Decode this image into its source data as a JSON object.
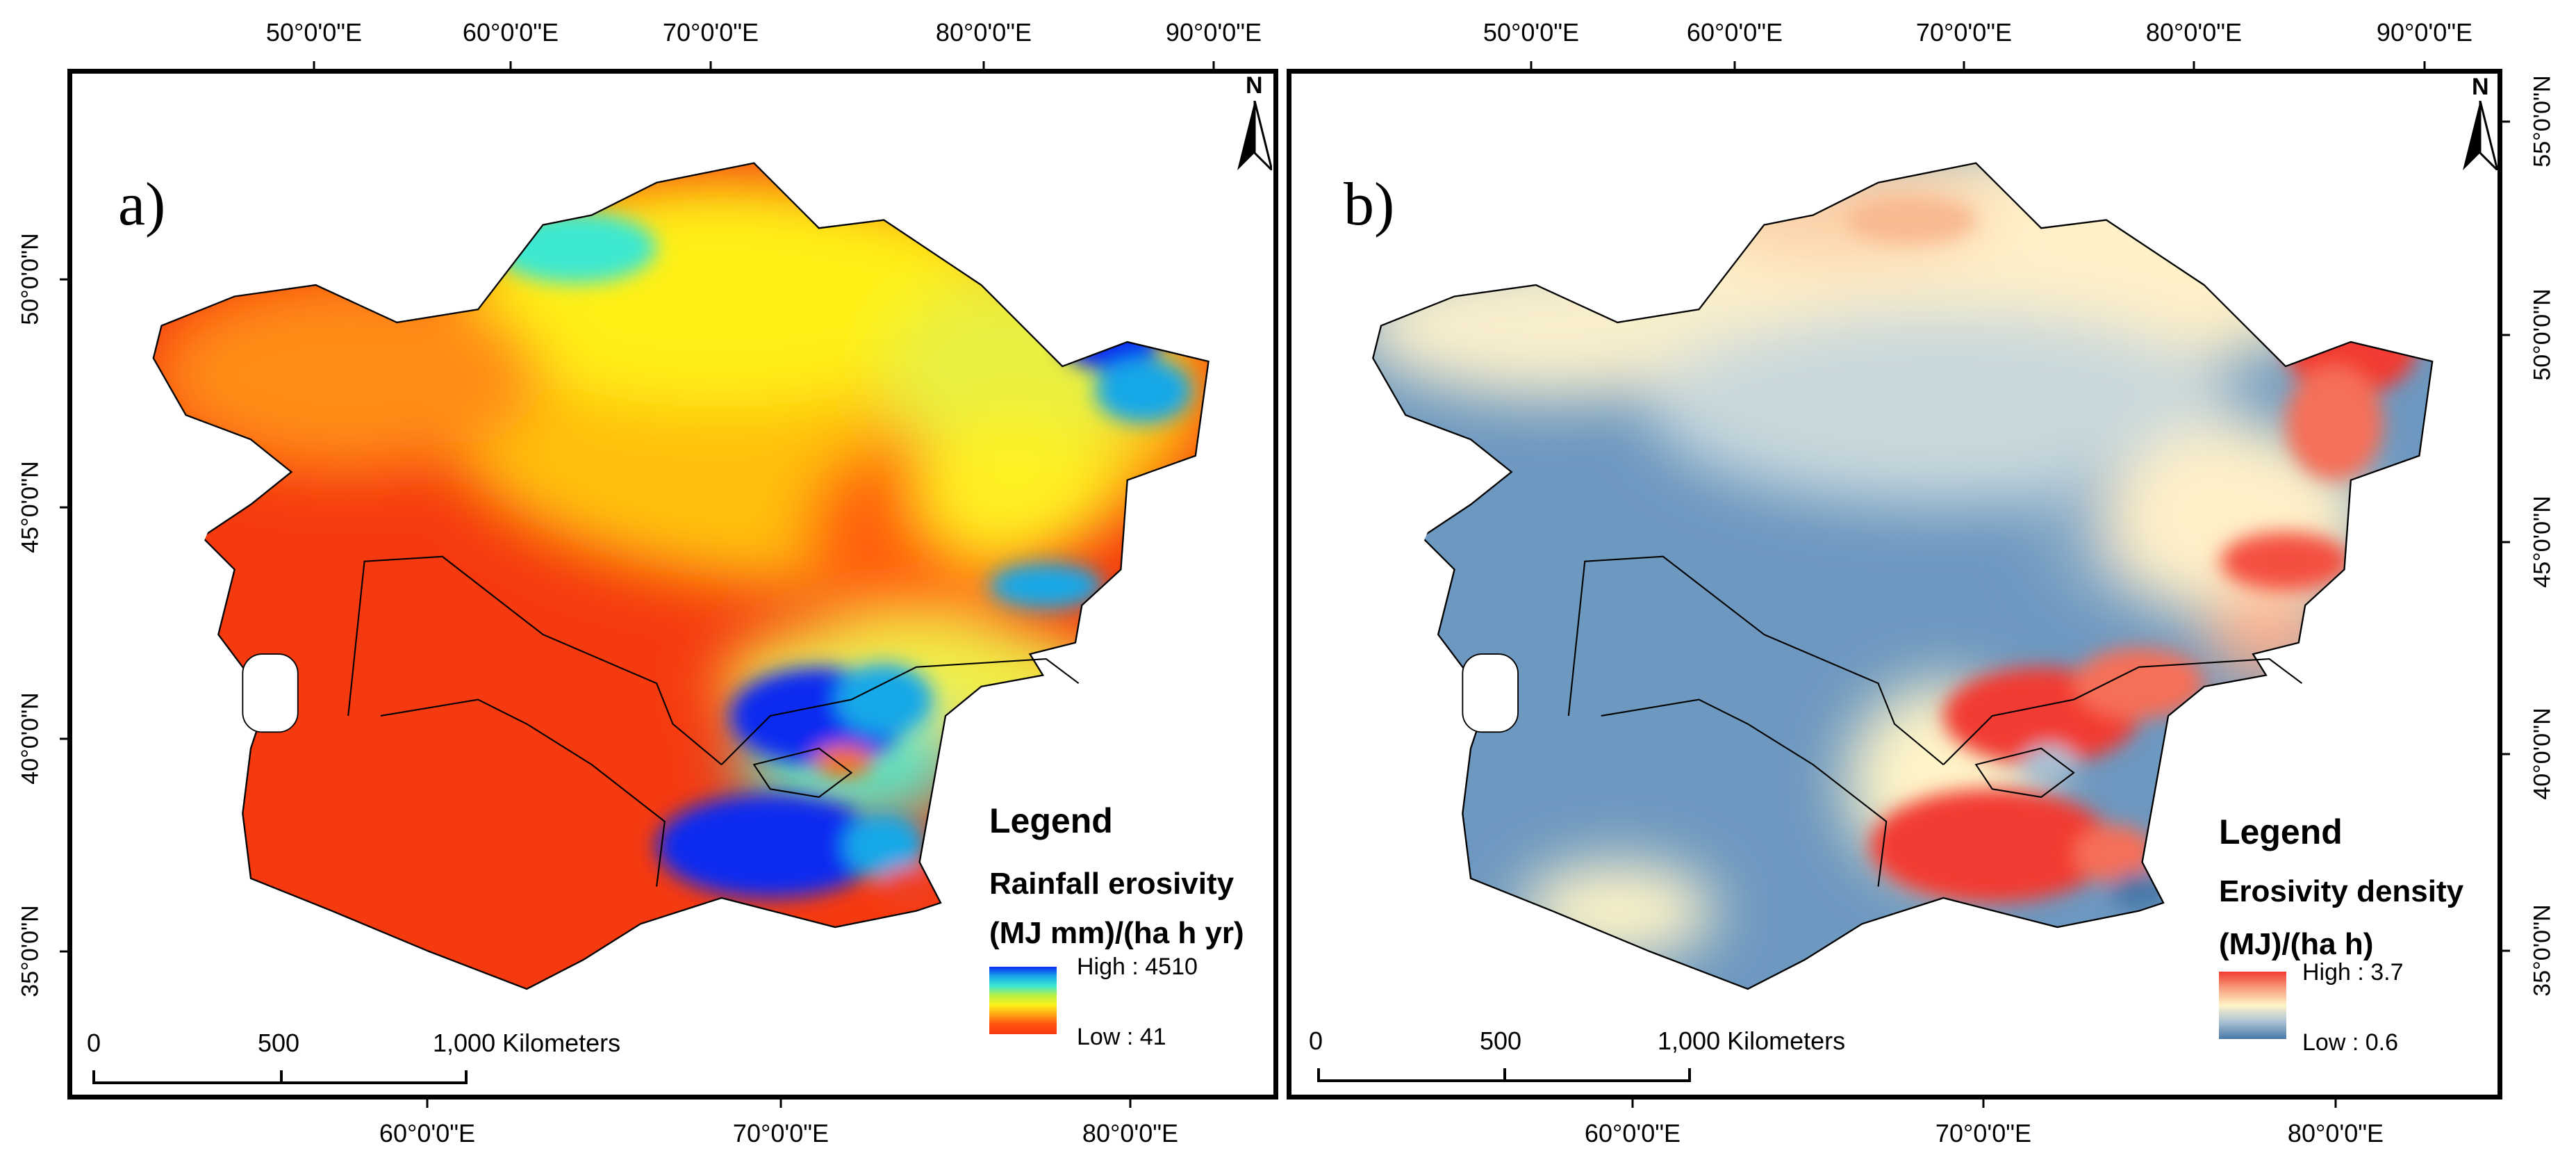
{
  "top_ticks": [
    "50°0'0\"E",
    "60°0'0\"E",
    "70°0'0\"E",
    "80°0'0\"E",
    "90°0'0\"E"
  ],
  "bottom_ticks": [
    "60°0'0\"E",
    "70°0'0\"E",
    "80°0'0\"E"
  ],
  "left_ticks": [
    "50°0'0\"N",
    "45°0'0\"N",
    "40°0'0\"N",
    "35°0'0\"N"
  ],
  "right_ticks": [
    "55°0'0\"N",
    "50°0'0\"N",
    "45°0'0\"N",
    "40°0'0\"N",
    "35°0'0\"N"
  ],
  "panel_a": {
    "label": "a)",
    "north": "N",
    "legend": {
      "title": "Legend",
      "variable": "Rainfall erosivity",
      "unit": "(MJ mm)/(ha h yr)",
      "high": "High : 4510",
      "low": "Low : 41",
      "colors": [
        "#0a2cf0",
        "#18a8e8",
        "#3ce8d0",
        "#b8f040",
        "#fff01a",
        "#ffa014",
        "#ff5010",
        "#f53a10"
      ]
    },
    "scale": {
      "ticks": [
        "0",
        "500",
        "1,000 Kilometers"
      ]
    }
  },
  "panel_b": {
    "label": "b)",
    "north": "N",
    "legend": {
      "title": "Legend",
      "variable": "Erosivity density",
      "unit": "(MJ)/(ha h)",
      "high": "High : 3.7",
      "low": "Low : 0.6",
      "colors": [
        "#f23a30",
        "#f8a080",
        "#fff4c8",
        "#a8c0d4",
        "#4878a8"
      ]
    },
    "scale": {
      "ticks": [
        "0",
        "500",
        "1,000 Kilometers"
      ]
    }
  }
}
